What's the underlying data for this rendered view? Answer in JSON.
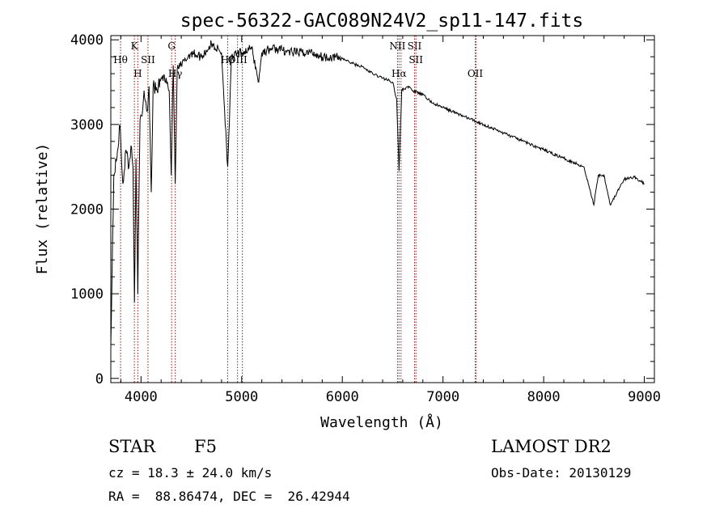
{
  "chart_data": {
    "type": "line",
    "title": "spec-56322-GAC089N24V2_sp11-147.fits",
    "xlabel": "Wavelength (Å)",
    "ylabel": "Flux (relative)",
    "xlim": [
      3700,
      9100
    ],
    "ylim": [
      -50,
      4050
    ],
    "x_ticks": [
      4000,
      5000,
      6000,
      7000,
      8000,
      9000
    ],
    "x_tick_labels": [
      "4000",
      "5000",
      "6000",
      "7000",
      "8000",
      "9000"
    ],
    "y_ticks": [
      0,
      1000,
      2000,
      3000,
      4000
    ],
    "y_tick_labels": [
      "0",
      "1000",
      "2000",
      "3000",
      "4000"
    ],
    "grid": false,
    "series": [
      {
        "name": "spectrum",
        "x": [
          3700,
          3730,
          3760,
          3790,
          3820,
          3850,
          3880,
          3900,
          3920,
          3935,
          3950,
          3968,
          3990,
          4010,
          4030,
          4060,
          4080,
          4102,
          4120,
          4160,
          4200,
          4250,
          4280,
          4300,
          4320,
          4340,
          4360,
          4400,
          4500,
          4600,
          4700,
          4800,
          4861,
          4900,
          5000,
          5100,
          5170,
          5200,
          5300,
          5400,
          5500,
          5600,
          5700,
          5800,
          5900,
          6000,
          6100,
          6200,
          6300,
          6400,
          6500,
          6540,
          6563,
          6590,
          6650,
          6700,
          6800,
          6900,
          7000,
          7200,
          7400,
          7600,
          7800,
          8000,
          8200,
          8400,
          8498,
          8542,
          8600,
          8662,
          8800,
          8900,
          9000
        ],
        "values": [
          400,
          2400,
          2600,
          3000,
          2300,
          2700,
          2500,
          2750,
          2500,
          900,
          2600,
          1000,
          3050,
          3100,
          3400,
          3150,
          3450,
          2200,
          3450,
          3400,
          3550,
          3550,
          3400,
          2400,
          3700,
          2300,
          3650,
          3700,
          3850,
          3800,
          3950,
          3850,
          2500,
          3800,
          3850,
          3900,
          3500,
          3850,
          3900,
          3880,
          3850,
          3850,
          3850,
          3800,
          3800,
          3780,
          3720,
          3680,
          3600,
          3550,
          3500,
          3300,
          2450,
          3400,
          3450,
          3400,
          3350,
          3250,
          3200,
          3100,
          3000,
          2900,
          2800,
          2700,
          2600,
          2500,
          2050,
          2400,
          2400,
          2050,
          2350,
          2380,
          2300
        ],
        "color": "#000000"
      }
    ],
    "line_markers": {
      "color": "#8b1a1a",
      "lines": [
        {
          "wavelength": 3797,
          "label": "Hθ",
          "row": 2
        },
        {
          "wavelength": 3934,
          "label": "K",
          "row": 1
        },
        {
          "wavelength": 3968,
          "label": "H",
          "row": 3
        },
        {
          "wavelength": 4069,
          "label": "SII",
          "row": 2
        },
        {
          "wavelength": 4304,
          "label": "G",
          "row": 1
        },
        {
          "wavelength": 4340,
          "label": "Hγ",
          "row": 3
        },
        {
          "wavelength": 4861,
          "label": "Hβ",
          "row": 2
        },
        {
          "wavelength": 4959,
          "label": "OIII",
          "row": 2
        },
        {
          "wavelength": 5007,
          "label": "OIII",
          "row": 2
        },
        {
          "wavelength": 6548,
          "label": "NII",
          "row": 1
        },
        {
          "wavelength": 6563,
          "label": "Hα",
          "row": 3
        },
        {
          "wavelength": 6583,
          "label": "NII",
          "row": 1
        },
        {
          "wavelength": 6717,
          "label": "SII",
          "row": 1
        },
        {
          "wavelength": 6731,
          "label": "SII",
          "row": 2
        },
        {
          "wavelength": 7320,
          "label": "OII",
          "row": 3
        },
        {
          "wavelength": 7330,
          "label": "OII",
          "row": 3
        }
      ]
    }
  },
  "info": {
    "class": "STAR",
    "subclass": "F5",
    "survey": "LAMOST DR2",
    "redshift": "cz = 18.3 ± 24.0 km/s",
    "obs_date": "Obs-Date: 20130129",
    "coords": "RA =  88.86474, DEC =  26.42944"
  }
}
